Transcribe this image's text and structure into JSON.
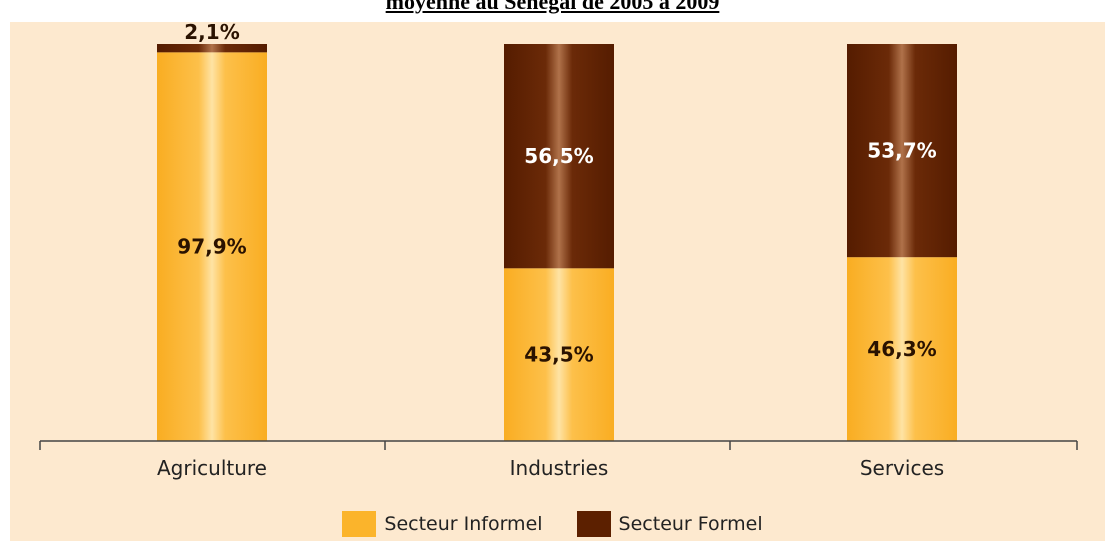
{
  "header": {
    "title": "moyenne au Sénégal de 2005 à 2009"
  },
  "colors": {
    "background": "#fde9cf",
    "informel": "#fbb42b",
    "formel": "#5c2000"
  },
  "chart_data": {
    "type": "bar",
    "stacked": true,
    "categories": [
      "Agriculture",
      "Industries",
      "Services"
    ],
    "series": [
      {
        "name": "Secteur Informel",
        "values": [
          97.9,
          43.5,
          46.3
        ],
        "labels": [
          "97,9%",
          "43,5%",
          "46,3%"
        ],
        "color": "#fbb42b"
      },
      {
        "name": "Secteur Formel",
        "values": [
          2.1,
          56.5,
          53.7
        ],
        "labels": [
          "2,1%",
          "56,5%",
          "53,7%"
        ],
        "color": "#5c2000"
      }
    ],
    "ylim": [
      0,
      100
    ],
    "grid": false,
    "legend_position": "bottom"
  }
}
